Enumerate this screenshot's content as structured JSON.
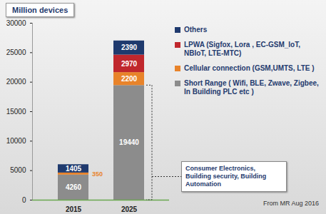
{
  "chart_data": {
    "type": "bar",
    "stacked": true,
    "data_labels": true,
    "grid": false,
    "legend": "right",
    "title": "Million devices",
    "categories": [
      "2015",
      "2025"
    ],
    "series": [
      {
        "name": "Short Range ( Wifi, BLE, Zwave, Zigbee, In Building PLC etc )",
        "color": "#8c8c8c",
        "values": [
          4260,
          19440
        ]
      },
      {
        "name": "Cellular connection (GSM,UMTS, LTE )",
        "color": "#e8832a",
        "values": [
          350,
          2200
        ]
      },
      {
        "name": "LPWA (Sigfox, Lora , EC-GSM_IoT, NBIoT, LTE-MTC)",
        "color": "#c0272d",
        "values": [
          null,
          2970
        ]
      },
      {
        "name": "Others",
        "color": "#1f3a6e",
        "values": [
          1405,
          2390
        ]
      }
    ],
    "ylim": [
      0,
      30000
    ],
    "yticks": [
      0,
      5000,
      10000,
      15000,
      20000,
      25000,
      30000
    ],
    "annotations": [
      "Consumer Electronics, Building security, Building Automation",
      "From MR Aug 2016"
    ]
  }
}
